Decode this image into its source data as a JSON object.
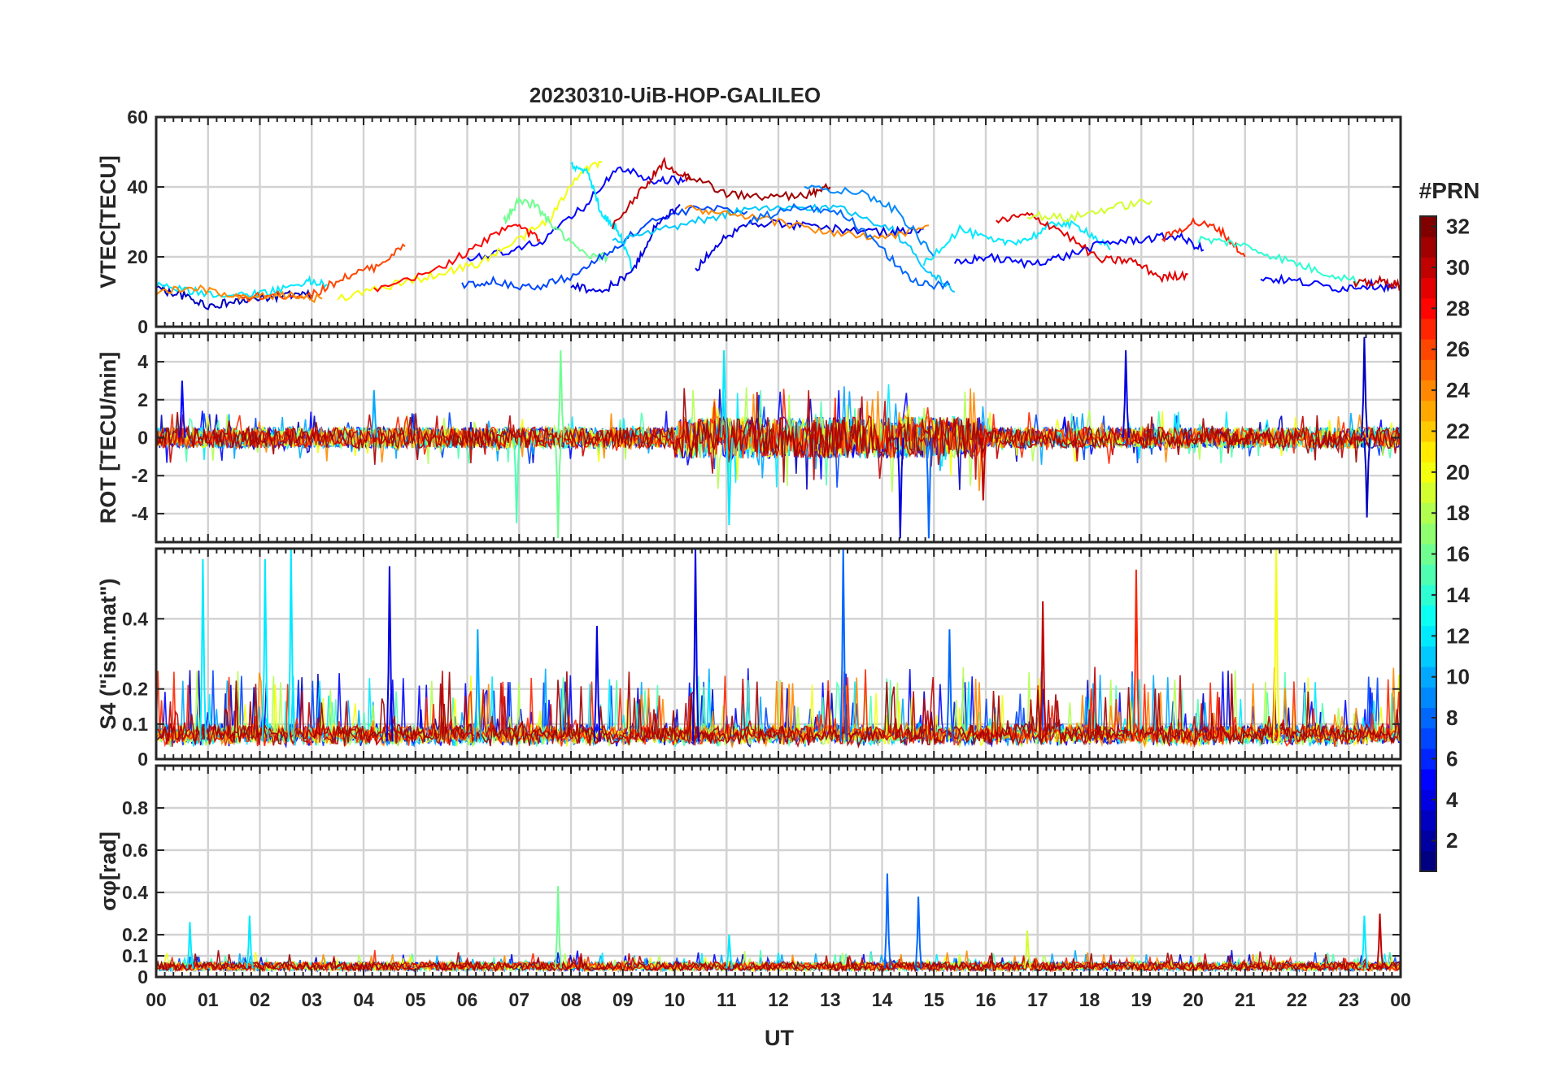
{
  "chart_data": {
    "title": "20230310-UiB-HOP-GALILEO",
    "xlabel": "UT",
    "x_ticks": [
      "00",
      "01",
      "02",
      "03",
      "04",
      "05",
      "06",
      "07",
      "08",
      "09",
      "10",
      "11",
      "12",
      "13",
      "14",
      "15",
      "16",
      "17",
      "18",
      "19",
      "20",
      "21",
      "22",
      "23",
      "00"
    ],
    "xlim": [
      0,
      24
    ],
    "colorbar": {
      "label": "#PRN",
      "range": [
        1,
        32
      ],
      "ticks": [
        2,
        4,
        6,
        8,
        10,
        12,
        14,
        16,
        18,
        20,
        22,
        24,
        26,
        28,
        30,
        32
      ],
      "colormap": "jet"
    },
    "panels": [
      {
        "id": "vtec",
        "type": "line",
        "ylabel": "VTEC[TECU]",
        "ylim": [
          0,
          60
        ],
        "y_ticks": [
          0,
          20,
          40,
          60
        ],
        "y_tick_labels": [
          "0",
          "20",
          "40",
          "60"
        ],
        "series": [
          {
            "prn": 3,
            "x": [
              0,
              0.5,
              1,
              1.5,
              2,
              2.5,
              3
            ],
            "y": [
              11,
              9,
              6,
              7,
              8,
              9,
              9
            ]
          },
          {
            "prn": 12,
            "x": [
              0,
              0.7,
              1.5,
              2.2,
              2.9,
              3.3
            ],
            "y": [
              12,
              10,
              9,
              10,
              13,
              12
            ]
          },
          {
            "prn": 26,
            "x": [
              1.5,
              2.3,
              3,
              3.6,
              4.2,
              4.8
            ],
            "y": [
              8,
              9,
              9,
              14,
              17,
              23
            ]
          },
          {
            "prn": 24,
            "x": [
              0,
              0.8,
              1.6,
              2.5,
              3.2
            ],
            "y": [
              10,
              11,
              8,
              9,
              8
            ]
          },
          {
            "prn": 5,
            "x": [
              6,
              6.8,
              7.5,
              8.3,
              8.9,
              9.6,
              10.2
            ],
            "y": [
              20,
              21,
              25,
              35,
              46,
              42,
              42
            ]
          },
          {
            "prn": 20,
            "x": [
              3.5,
              4.6,
              5.4,
              6.2,
              6.9,
              7.6,
              8.2,
              8.6
            ],
            "y": [
              8,
              12,
              15,
              18,
              24,
              31,
              45,
              47
            ]
          },
          {
            "prn": 28,
            "x": [
              4.2,
              5.2,
              6.1,
              6.9,
              7.4
            ],
            "y": [
              10,
              15,
              22,
              30,
              25
            ]
          },
          {
            "prn": 16,
            "x": [
              6.7,
              7,
              7.3,
              7.7,
              8.3,
              8.7
            ],
            "y": [
              30,
              36,
              35,
              28,
              20,
              20
            ]
          },
          {
            "prn": 12,
            "x": [
              8,
              8.3,
              8.6,
              8.9,
              9.2
            ],
            "y": [
              46,
              45,
              32,
              28,
              16
            ]
          },
          {
            "prn": 7,
            "x": [
              5.9,
              6.5,
              7.3,
              8.1,
              8.8,
              9.5,
              10.5,
              11.4
            ],
            "y": [
              12,
              13,
              11,
              15,
              22,
              30,
              34,
              33
            ]
          },
          {
            "prn": 4,
            "x": [
              8,
              8.6,
              9.2,
              9.6,
              10.1
            ],
            "y": [
              12,
              10,
              16,
              28,
              35
            ]
          },
          {
            "prn": 30,
            "x": [
              8.8,
              9.4,
              9.8,
              10.3
            ],
            "y": [
              29,
              40,
              47,
              42
            ]
          },
          {
            "prn": 31,
            "x": [
              10.2,
              11,
              11.8,
              12.6,
              13
            ],
            "y": [
              44,
              38,
              37,
              38,
              40
            ]
          },
          {
            "prn": 11,
            "x": [
              8.8,
              9.6,
              10.4,
              11.2,
              12.2,
              13.2,
              14.2,
              14.9,
              15.4
            ],
            "y": [
              24,
              27,
              30,
              33,
              34,
              34,
              28,
              16,
              10
            ]
          },
          {
            "prn": 4,
            "x": [
              10.4,
              10.9,
              11.5,
              12.3,
              13.1,
              14.1,
              14.8
            ],
            "y": [
              16,
              25,
              30,
              29,
              28,
              27,
              28
            ]
          },
          {
            "prn": 24,
            "x": [
              10.2,
              11,
              12,
              13,
              14,
              14.9
            ],
            "y": [
              34,
              32,
              30,
              27,
              25,
              29
            ]
          },
          {
            "prn": 8,
            "x": [
              11.4,
              12.3,
              13.2,
              14,
              14.7,
              15.3
            ],
            "y": [
              30,
              34,
              33,
              22,
              12,
              12
            ]
          },
          {
            "prn": 9,
            "x": [
              12.5,
              13.5,
              14.3,
              15
            ],
            "y": [
              40,
              39,
              33,
              20
            ]
          },
          {
            "prn": 12,
            "x": [
              14.8,
              15.5,
              16.2,
              16.8,
              17.4,
              17.9,
              18.4
            ],
            "y": [
              18,
              28,
              24,
              25,
              30,
              28,
              22
            ]
          },
          {
            "prn": 5,
            "x": [
              15.4,
              16,
              16.8,
              17.5,
              18.3,
              19,
              19.7,
              20.2
            ],
            "y": [
              18,
              20,
              18,
              20,
              24,
              25,
              26,
              22
            ]
          },
          {
            "prn": 29,
            "x": [
              16.2,
              16.8,
              17.4,
              18.2,
              18.8,
              19.4,
              19.9
            ],
            "y": [
              30,
              32,
              28,
              19,
              19,
              14,
              15
            ]
          },
          {
            "prn": 19,
            "x": [
              16.8,
              17.6,
              18.4,
              19.2
            ],
            "y": [
              32,
              31,
              34,
              36
            ]
          },
          {
            "prn": 27,
            "x": [
              19.4,
              20,
              20.5,
              21
            ],
            "y": [
              25,
              30,
              28,
              20
            ]
          },
          {
            "prn": 14,
            "x": [
              20.1,
              20.8,
              21.6,
              22.4,
              23.2
            ],
            "y": [
              25,
              24,
              20,
              16,
              13
            ]
          },
          {
            "prn": 5,
            "x": [
              21.3,
              22,
              22.8,
              23.4,
              23.9
            ],
            "y": [
              14,
              13,
              11,
              12,
              11
            ]
          },
          {
            "prn": 30,
            "x": [
              23.1,
              23.6,
              24
            ],
            "y": [
              12,
              13,
              12
            ]
          }
        ]
      },
      {
        "id": "rot",
        "type": "line",
        "ylabel": "ROT [TECU/min]",
        "ylim": [
          -5.5,
          5.5
        ],
        "y_ticks": [
          -4,
          -2,
          0,
          2,
          4
        ],
        "y_tick_labels": [
          "-4",
          "-2",
          "0",
          "2",
          "4"
        ],
        "peaks": [
          {
            "x": 0.5,
            "y": 3.0,
            "prn": 5
          },
          {
            "x": 4.2,
            "y": 2.5,
            "prn": 10
          },
          {
            "x": 6.95,
            "y": -4.5,
            "prn": 15
          },
          {
            "x": 7.75,
            "y": -5.3,
            "prn": 16
          },
          {
            "x": 7.8,
            "y": 4.6,
            "prn": 16
          },
          {
            "x": 11.05,
            "y": -4.6,
            "prn": 12
          },
          {
            "x": 10.95,
            "y": 4.6,
            "prn": 12
          },
          {
            "x": 14.35,
            "y": -5.3,
            "prn": 4
          },
          {
            "x": 14.9,
            "y": -5.3,
            "prn": 8
          },
          {
            "x": 15.95,
            "y": -3.3,
            "prn": 30
          },
          {
            "x": 18.7,
            "y": 4.6,
            "prn": 4
          },
          {
            "x": 23.3,
            "y": 5.3,
            "prn": 3
          },
          {
            "x": 23.35,
            "y": -4.2,
            "prn": 3
          }
        ]
      },
      {
        "id": "s4",
        "type": "line",
        "ylabel": "S4 (\"ism.mat\")",
        "ylim": [
          0,
          0.6
        ],
        "y_ticks": [
          0,
          0.1,
          0.2,
          0.4
        ],
        "y_tick_labels": [
          "0",
          "0.1",
          "0.2",
          "0.4"
        ],
        "peaks": [
          {
            "x": 0.9,
            "y": 0.57,
            "prn": 12
          },
          {
            "x": 2.1,
            "y": 0.57,
            "prn": 12
          },
          {
            "x": 2.6,
            "y": 0.6,
            "prn": 12
          },
          {
            "x": 4.5,
            "y": 0.55,
            "prn": 4
          },
          {
            "x": 6.2,
            "y": 0.37,
            "prn": 10
          },
          {
            "x": 8.5,
            "y": 0.38,
            "prn": 4
          },
          {
            "x": 10.4,
            "y": 0.6,
            "prn": 4
          },
          {
            "x": 13.25,
            "y": 0.6,
            "prn": 8
          },
          {
            "x": 15.3,
            "y": 0.37,
            "prn": 8
          },
          {
            "x": 17.1,
            "y": 0.45,
            "prn": 30
          },
          {
            "x": 18.9,
            "y": 0.54,
            "prn": 27
          },
          {
            "x": 21.6,
            "y": 0.6,
            "prn": 20
          }
        ]
      },
      {
        "id": "sigma_phi",
        "type": "line",
        "ylabel": "σφ[rad]",
        "ylim": [
          0,
          1
        ],
        "y_ticks": [
          0,
          0.1,
          0.2,
          0.4,
          0.6,
          0.8
        ],
        "y_tick_labels": [
          "0",
          "0.1",
          "0.2",
          "0.4",
          "0.6",
          "0.8"
        ],
        "peaks": [
          {
            "x": 0.65,
            "y": 0.26,
            "prn": 12
          },
          {
            "x": 1.8,
            "y": 0.29,
            "prn": 12
          },
          {
            "x": 7.75,
            "y": 0.43,
            "prn": 16
          },
          {
            "x": 11.05,
            "y": 0.2,
            "prn": 12
          },
          {
            "x": 14.1,
            "y": 0.49,
            "prn": 8
          },
          {
            "x": 14.7,
            "y": 0.38,
            "prn": 8
          },
          {
            "x": 16.8,
            "y": 0.22,
            "prn": 19
          },
          {
            "x": 23.3,
            "y": 0.29,
            "prn": 12
          },
          {
            "x": 23.6,
            "y": 0.3,
            "prn": 30
          }
        ]
      }
    ]
  }
}
